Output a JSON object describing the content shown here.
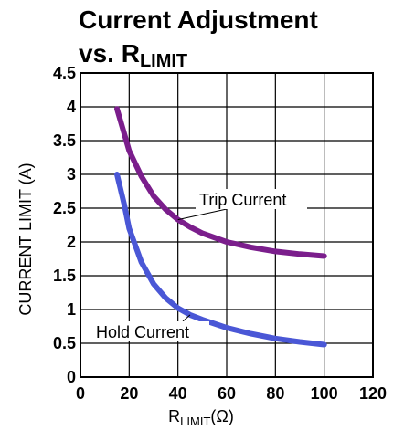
{
  "chart_data": {
    "type": "line",
    "title_line1": "Current Adjustment",
    "title_line2_main": "vs. R",
    "title_line2_sub": "LIMIT",
    "xlabel_main": "R",
    "xlabel_sub": "LIMIT",
    "xlabel_unit": "(Ω)",
    "ylabel": "CURRENT LIMIT (A)",
    "xlim": [
      0,
      120
    ],
    "ylim": [
      0,
      4.5
    ],
    "x_ticks": [
      0,
      20,
      40,
      60,
      80,
      100,
      120
    ],
    "x_tick_labels": [
      "0",
      "20",
      "40",
      "60",
      "80",
      "100",
      "120"
    ],
    "y_ticks": [
      0,
      0.5,
      1,
      1.5,
      2,
      2.5,
      3,
      3.5,
      4,
      4.5
    ],
    "y_tick_labels": [
      "0",
      "0.5",
      "1",
      "1.5",
      "2",
      "2.5",
      "3",
      "3.5",
      "4",
      "4.5"
    ],
    "grid": true,
    "series": [
      {
        "name": "Trip Current",
        "color": "#7b1e8c",
        "x": [
          15,
          18,
          20,
          25,
          30,
          35,
          40,
          45,
          50,
          60,
          70,
          80,
          90,
          100
        ],
        "y": [
          3.97,
          3.6,
          3.35,
          2.97,
          2.68,
          2.48,
          2.33,
          2.22,
          2.13,
          2.0,
          1.92,
          1.86,
          1.82,
          1.79
        ]
      },
      {
        "name": "Hold Current",
        "color": "#4a57d6",
        "x": [
          15,
          18,
          20,
          25,
          30,
          35,
          40,
          45,
          50,
          60,
          70,
          80,
          90,
          100
        ],
        "y": [
          3.0,
          2.55,
          2.2,
          1.7,
          1.38,
          1.17,
          1.02,
          0.92,
          0.85,
          0.73,
          0.64,
          0.57,
          0.52,
          0.48
        ]
      }
    ],
    "annotations": [
      {
        "text": "Trip Current",
        "series": "Trip Current"
      },
      {
        "text": "Hold Current",
        "series": "Hold Current"
      }
    ]
  }
}
